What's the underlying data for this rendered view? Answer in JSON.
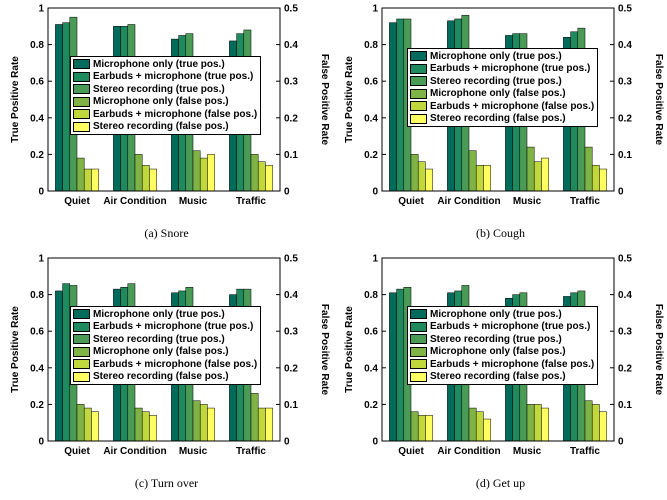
{
  "figure": {
    "series_colors": [
      "#006b5b",
      "#1f8a5e",
      "#4a9b56",
      "#7fb346",
      "#c0d83b",
      "#ffff60"
    ],
    "categories": [
      "Quiet",
      "Air Condition",
      "Music",
      "Traffic"
    ],
    "ylabel_left": "True Positive Rate",
    "ylabel_right": "False Positive Rate",
    "left_ticks": [
      "0",
      "0.2",
      "0.4",
      "0.6",
      "0.8",
      "1"
    ],
    "right_ticks": [
      "0",
      "0.1",
      "0.2",
      "0.3",
      "0.4",
      "0.5"
    ],
    "legend": [
      "Microphone only (true pos.)",
      "Earbuds + microphone (true pos.)",
      "Stereo recording (true pos.)",
      "Microphone only (false pos.)",
      "Earbuds + microphone (false pos.)",
      "Stereo recording (false pos.)"
    ]
  },
  "chart_data": [
    {
      "type": "bar",
      "caption": "(a) Snore",
      "categories": [
        "Quiet",
        "Air Condition",
        "Music",
        "Traffic"
      ],
      "ylim_left": [
        0,
        1
      ],
      "ylim_right": [
        0,
        0.5
      ],
      "series": [
        {
          "name": "Microphone only (true pos.)",
          "axis": "left",
          "values": [
            0.91,
            0.9,
            0.83,
            0.82
          ]
        },
        {
          "name": "Earbuds + microphone (true pos.)",
          "axis": "left",
          "values": [
            0.92,
            0.9,
            0.85,
            0.86
          ]
        },
        {
          "name": "Stereo recording (true pos.)",
          "axis": "left",
          "values": [
            0.95,
            0.91,
            0.86,
            0.88
          ]
        },
        {
          "name": "Microphone only (false pos.)",
          "axis": "right",
          "values": [
            0.09,
            0.1,
            0.11,
            0.1
          ]
        },
        {
          "name": "Earbuds + microphone (false pos.)",
          "axis": "right",
          "values": [
            0.06,
            0.07,
            0.09,
            0.08
          ]
        },
        {
          "name": "Stereo recording (false pos.)",
          "axis": "right",
          "values": [
            0.06,
            0.06,
            0.1,
            0.07
          ]
        }
      ]
    },
    {
      "type": "bar",
      "caption": "(b) Cough",
      "categories": [
        "Quiet",
        "Air Condition",
        "Music",
        "Traffic"
      ],
      "ylim_left": [
        0,
        1
      ],
      "ylim_right": [
        0,
        0.5
      ],
      "series": [
        {
          "name": "Microphone only (true pos.)",
          "axis": "left",
          "values": [
            0.92,
            0.93,
            0.85,
            0.84
          ]
        },
        {
          "name": "Earbuds + microphone (true pos.)",
          "axis": "left",
          "values": [
            0.94,
            0.94,
            0.86,
            0.87
          ]
        },
        {
          "name": "Stereo recording (true pos.)",
          "axis": "left",
          "values": [
            0.94,
            0.96,
            0.86,
            0.89
          ]
        },
        {
          "name": "Microphone only (false pos.)",
          "axis": "right",
          "values": [
            0.1,
            0.11,
            0.12,
            0.12
          ]
        },
        {
          "name": "Earbuds + microphone (false pos.)",
          "axis": "right",
          "values": [
            0.08,
            0.07,
            0.08,
            0.07
          ]
        },
        {
          "name": "Stereo recording (false pos.)",
          "axis": "right",
          "values": [
            0.06,
            0.07,
            0.09,
            0.06
          ]
        }
      ]
    },
    {
      "type": "bar",
      "caption": "(c) Turn over",
      "categories": [
        "Quiet",
        "Air Condition",
        "Music",
        "Traffic"
      ],
      "ylim_left": [
        0,
        1
      ],
      "ylim_right": [
        0,
        0.5
      ],
      "series": [
        {
          "name": "Microphone only (true pos.)",
          "axis": "left",
          "values": [
            0.82,
            0.83,
            0.81,
            0.8
          ]
        },
        {
          "name": "Earbuds + microphone (true pos.)",
          "axis": "left",
          "values": [
            0.86,
            0.84,
            0.82,
            0.83
          ]
        },
        {
          "name": "Stereo recording (true pos.)",
          "axis": "left",
          "values": [
            0.85,
            0.86,
            0.84,
            0.83
          ]
        },
        {
          "name": "Microphone only (false pos.)",
          "axis": "right",
          "values": [
            0.1,
            0.09,
            0.11,
            0.13
          ]
        },
        {
          "name": "Earbuds + microphone (false pos.)",
          "axis": "right",
          "values": [
            0.09,
            0.08,
            0.1,
            0.09
          ]
        },
        {
          "name": "Stereo recording (false pos.)",
          "axis": "right",
          "values": [
            0.08,
            0.07,
            0.09,
            0.09
          ]
        }
      ]
    },
    {
      "type": "bar",
      "caption": "(d) Get up",
      "categories": [
        "Quiet",
        "Air Condition",
        "Music",
        "Traffic"
      ],
      "ylim_left": [
        0,
        1
      ],
      "ylim_right": [
        0,
        0.5
      ],
      "series": [
        {
          "name": "Microphone only (true pos.)",
          "axis": "left",
          "values": [
            0.81,
            0.81,
            0.78,
            0.79
          ]
        },
        {
          "name": "Earbuds + microphone (true pos.)",
          "axis": "left",
          "values": [
            0.83,
            0.82,
            0.8,
            0.81
          ]
        },
        {
          "name": "Stereo recording (true pos.)",
          "axis": "left",
          "values": [
            0.84,
            0.85,
            0.81,
            0.82
          ]
        },
        {
          "name": "Microphone only (false pos.)",
          "axis": "right",
          "values": [
            0.08,
            0.09,
            0.1,
            0.11
          ]
        },
        {
          "name": "Earbuds + microphone (false pos.)",
          "axis": "right",
          "values": [
            0.07,
            0.08,
            0.1,
            0.1
          ]
        },
        {
          "name": "Stereo recording (false pos.)",
          "axis": "right",
          "values": [
            0.07,
            0.06,
            0.09,
            0.08
          ]
        }
      ]
    }
  ]
}
